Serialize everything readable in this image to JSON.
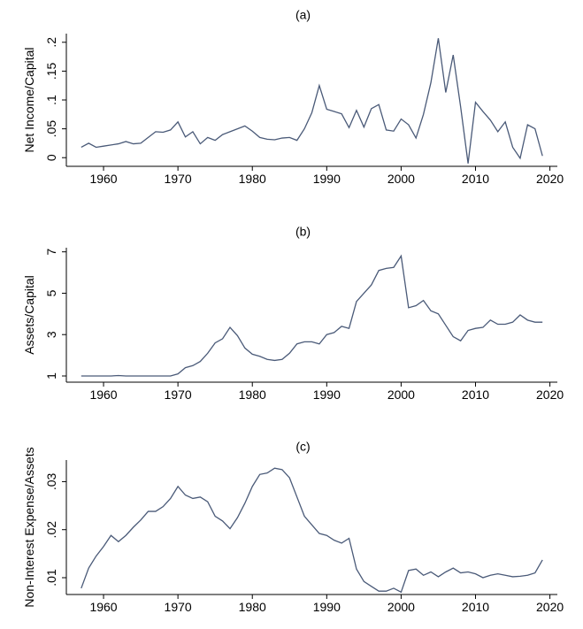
{
  "chart_data": [
    {
      "type": "line",
      "title": "(a)",
      "y_label": "Net Income/Capital",
      "x": [
        1957,
        1958,
        1959,
        1960,
        1961,
        1962,
        1963,
        1964,
        1965,
        1966,
        1967,
        1968,
        1969,
        1970,
        1971,
        1972,
        1973,
        1974,
        1975,
        1976,
        1977,
        1978,
        1979,
        1980,
        1981,
        1982,
        1983,
        1984,
        1985,
        1986,
        1987,
        1988,
        1989,
        1990,
        1991,
        1992,
        1993,
        1994,
        1995,
        1996,
        1997,
        1998,
        1999,
        2000,
        2001,
        2002,
        2003,
        2004,
        2005,
        2006,
        2007,
        2008,
        2009,
        2010,
        2011,
        2012,
        2013,
        2014,
        2015,
        2016,
        2017,
        2018,
        2019
      ],
      "series": [
        {
          "color": "#4a5a78",
          "values": [
            0.018,
            0.025,
            0.018,
            0.02,
            0.022,
            0.024,
            0.028,
            0.024,
            0.025,
            0.035,
            0.045,
            0.044,
            0.048,
            0.062,
            0.036,
            0.045,
            0.024,
            0.035,
            0.03,
            0.04,
            0.045,
            0.05,
            0.055,
            0.046,
            0.035,
            0.032,
            0.031,
            0.034,
            0.035,
            0.03,
            0.05,
            0.078,
            0.125,
            0.084,
            0.08,
            0.076,
            0.052,
            0.082,
            0.053,
            0.085,
            0.092,
            0.048,
            0.046,
            0.067,
            0.057,
            0.034,
            0.075,
            0.13,
            0.207,
            0.113,
            0.178,
            0.088,
            -0.01,
            0.096,
            0.08,
            0.065,
            0.045,
            0.062,
            0.018,
            -0.001,
            0.057,
            0.05,
            0.003
          ]
        }
      ],
      "xlim": [
        1955,
        2021
      ],
      "xticks": [
        1960,
        1970,
        1980,
        1990,
        2000,
        2010,
        2020
      ],
      "ylim": [
        -0.015,
        0.215
      ],
      "yticks": [
        0,
        {
          "value": 0.05,
          "label": ".05"
        },
        {
          "value": 0.1,
          "label": ".1"
        },
        {
          "value": 0.15,
          "label": ".15"
        },
        {
          "value": 0.2,
          "label": ".2"
        }
      ]
    },
    {
      "type": "line",
      "title": "(b)",
      "y_label": "Assets/Capital",
      "x": [
        1957,
        1958,
        1959,
        1960,
        1961,
        1962,
        1963,
        1964,
        1965,
        1966,
        1967,
        1968,
        1969,
        1970,
        1971,
        1972,
        1973,
        1974,
        1975,
        1976,
        1977,
        1978,
        1979,
        1980,
        1981,
        1982,
        1983,
        1984,
        1985,
        1986,
        1987,
        1988,
        1989,
        1990,
        1991,
        1992,
        1993,
        1994,
        1995,
        1996,
        1997,
        1998,
        1999,
        2000,
        2001,
        2002,
        2003,
        2004,
        2005,
        2006,
        2007,
        2008,
        2009,
        2010,
        2011,
        2012,
        2013,
        2014,
        2015,
        2016,
        2017,
        2018,
        2019
      ],
      "series": [
        {
          "color": "#4a5a78",
          "values": [
            1,
            1,
            1,
            1,
            1,
            1.02,
            1,
            1,
            1,
            1,
            1,
            1,
            1,
            1.1,
            1.4,
            1.5,
            1.7,
            2.1,
            2.6,
            2.8,
            3.35,
            2.95,
            2.35,
            2.05,
            1.95,
            1.8,
            1.75,
            1.8,
            2.1,
            2.55,
            2.65,
            2.65,
            2.55,
            3.0,
            3.1,
            3.4,
            3.3,
            4.6,
            5.0,
            5.4,
            6.1,
            6.2,
            6.25,
            6.8,
            4.3,
            4.4,
            4.65,
            4.15,
            4.0,
            3.45,
            2.9,
            2.7,
            3.2,
            3.3,
            3.35,
            3.7,
            3.5,
            3.5,
            3.6,
            3.95,
            3.7,
            3.6,
            3.6
          ]
        }
      ],
      "xlim": [
        1955,
        2021
      ],
      "xticks": [
        1960,
        1970,
        1980,
        1990,
        2000,
        2010,
        2020
      ],
      "ylim": [
        0.7,
        7.2
      ],
      "yticks": [
        1,
        3,
        5,
        7
      ]
    },
    {
      "type": "line",
      "title": "(c)",
      "y_label": "Non-Interest Expense/Assets",
      "x": [
        1957,
        1958,
        1959,
        1960,
        1961,
        1962,
        1963,
        1964,
        1965,
        1966,
        1967,
        1968,
        1969,
        1970,
        1971,
        1972,
        1973,
        1974,
        1975,
        1976,
        1977,
        1978,
        1979,
        1980,
        1981,
        1982,
        1983,
        1984,
        1985,
        1986,
        1987,
        1988,
        1989,
        1990,
        1991,
        1992,
        1993,
        1994,
        1995,
        1996,
        1997,
        1998,
        1999,
        2000,
        2001,
        2002,
        2003,
        2004,
        2005,
        2006,
        2007,
        2008,
        2009,
        2010,
        2011,
        2012,
        2013,
        2014,
        2015,
        2016,
        2017,
        2018,
        2019
      ],
      "series": [
        {
          "color": "#4a5a78",
          "values": [
            0.0078,
            0.012,
            0.0145,
            0.0165,
            0.0188,
            0.0175,
            0.0188,
            0.0205,
            0.022,
            0.0238,
            0.0238,
            0.0248,
            0.0265,
            0.029,
            0.0272,
            0.0265,
            0.0268,
            0.0258,
            0.0228,
            0.0218,
            0.0202,
            0.0225,
            0.0255,
            0.029,
            0.0315,
            0.0318,
            0.0328,
            0.0325,
            0.0308,
            0.0268,
            0.0228,
            0.021,
            0.0192,
            0.0188,
            0.0178,
            0.0172,
            0.0182,
            0.0118,
            0.0092,
            0.0082,
            0.0072,
            0.0072,
            0.0078,
            0.007,
            0.0115,
            0.0118,
            0.0105,
            0.0112,
            0.0102,
            0.0112,
            0.012,
            0.011,
            0.0112,
            0.0108,
            0.01,
            0.0105,
            0.0108,
            0.0105,
            0.0102,
            0.0103,
            0.0105,
            0.011,
            0.0137
          ]
        }
      ],
      "xlim": [
        1955,
        2021
      ],
      "xticks": [
        1960,
        1970,
        1980,
        1990,
        2000,
        2010,
        2020
      ],
      "ylim": [
        0.0065,
        0.0345
      ],
      "yticks": [
        {
          "value": 0.01,
          "label": ".01"
        },
        {
          "value": 0.02,
          "label": ".02"
        },
        {
          "value": 0.03,
          "label": ".03"
        }
      ]
    }
  ]
}
